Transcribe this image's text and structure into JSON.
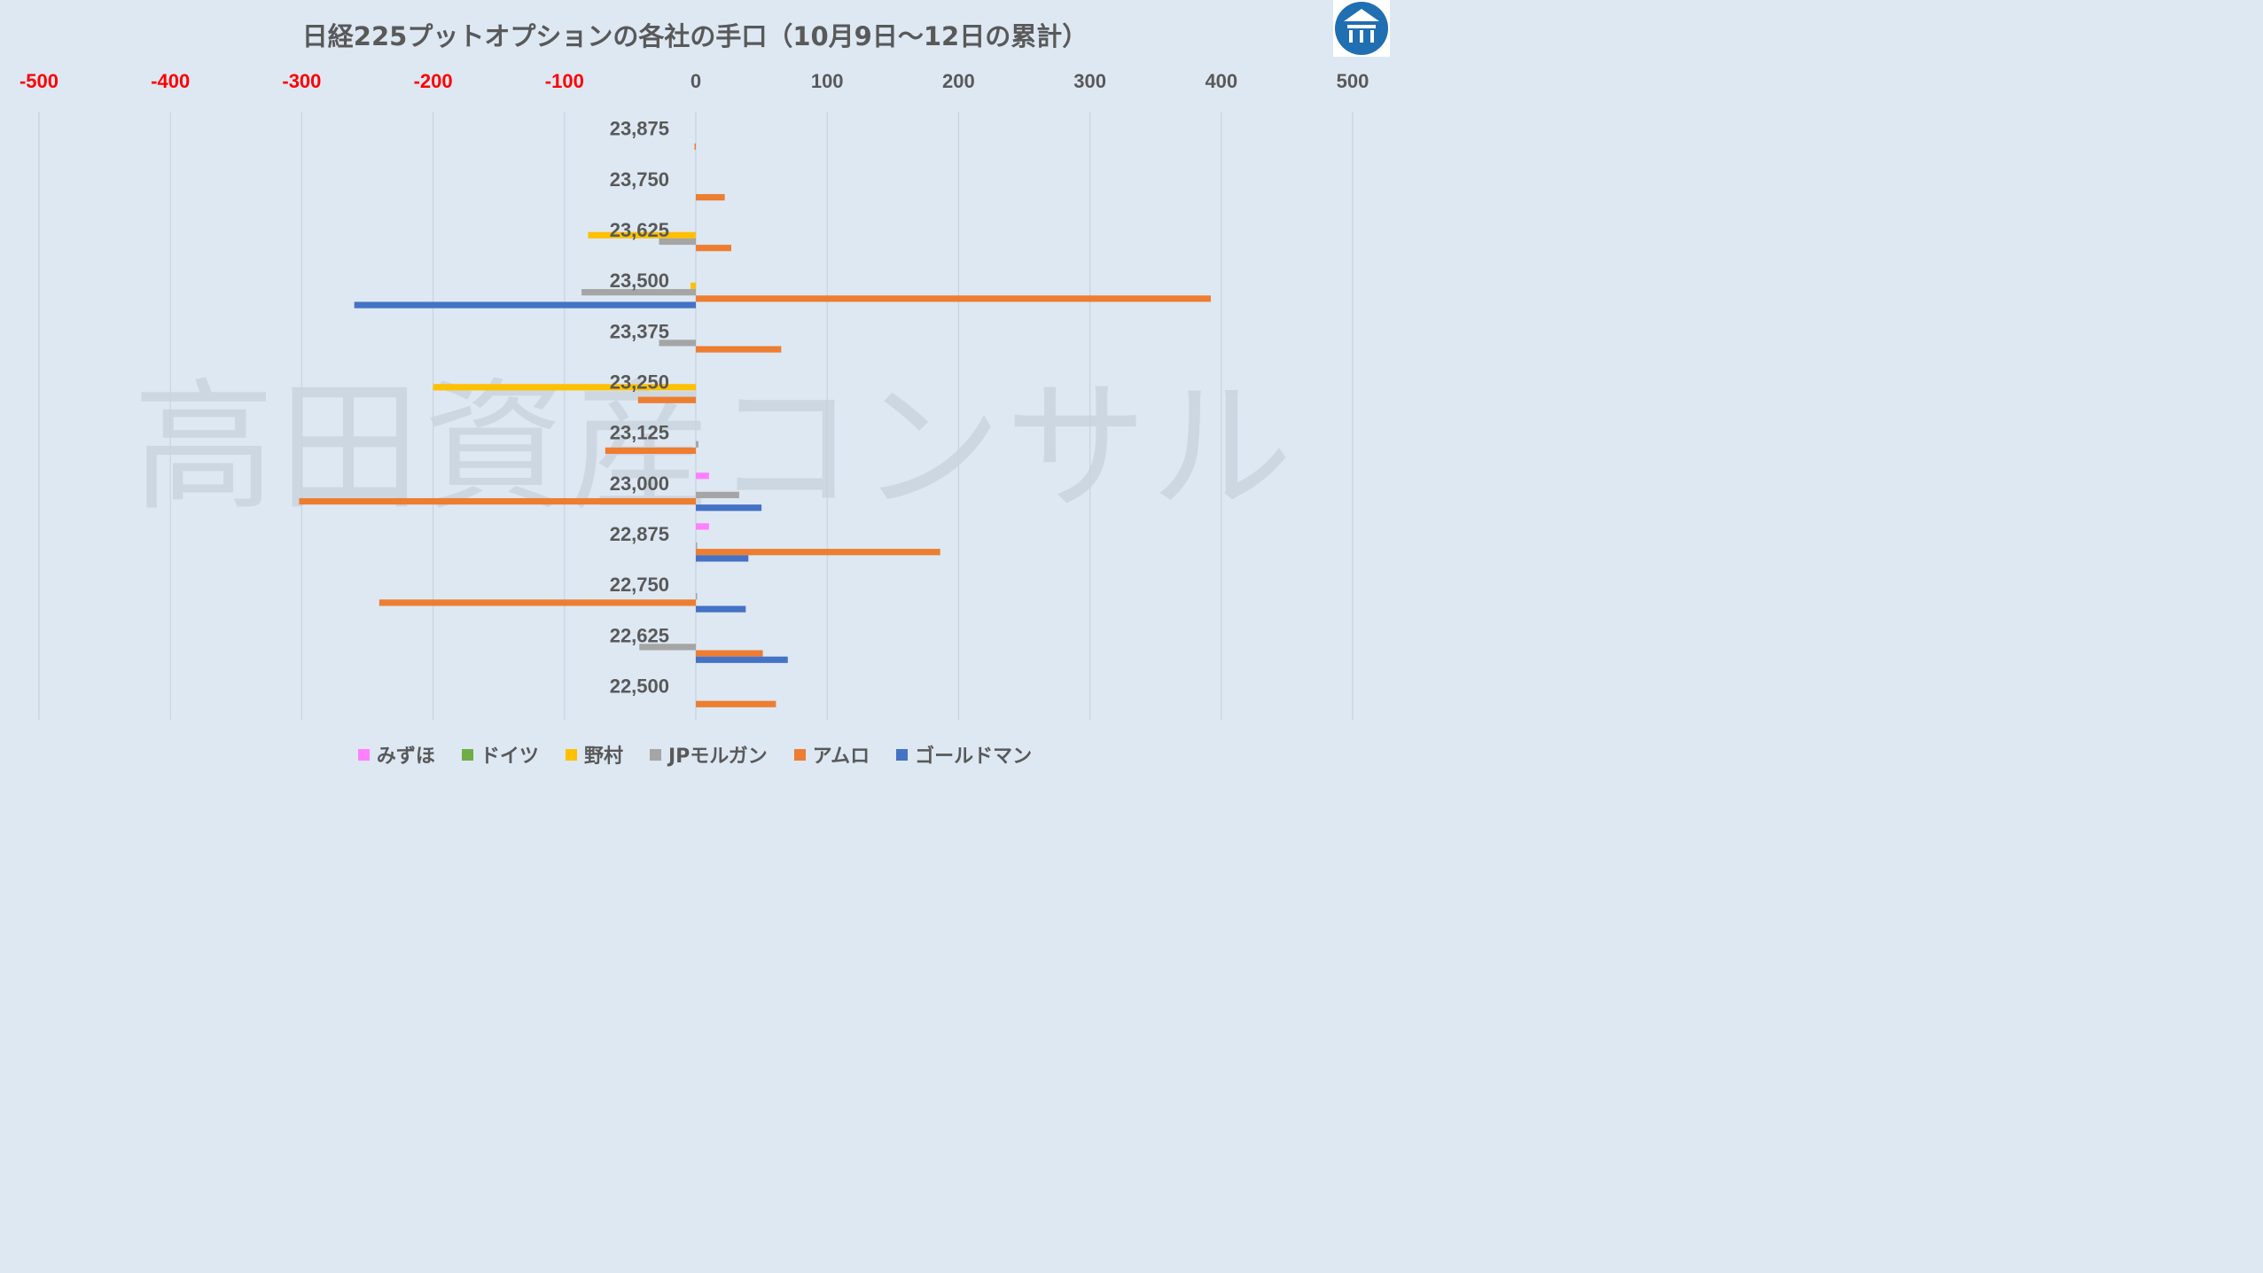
{
  "chart_data": {
    "type": "bar",
    "orientation": "horizontal",
    "title": "日経225プットオプションの各社の手口（10月9日～12日の累計）",
    "watermark": "高田資産コンサル",
    "xlim": [
      -500,
      500
    ],
    "xticks": [
      -500,
      -400,
      -300,
      -200,
      -100,
      0,
      100,
      200,
      300,
      400,
      500
    ],
    "xtick_labels": [
      "-500",
      "-400",
      "-300",
      "-200",
      "-100",
      "0",
      "100",
      "200",
      "300",
      "400",
      "500"
    ],
    "negative_tick_color": "#ff0000",
    "positive_tick_color": "#595959",
    "grid": "vertical",
    "legend_position": "bottom",
    "categories": [
      "23,875",
      "23,750",
      "23,625",
      "23,500",
      "23,375",
      "23,250",
      "23,125",
      "23,000",
      "22,875",
      "22,750",
      "22,625",
      "22,500"
    ],
    "series": [
      {
        "name": "みずほ",
        "color": "#ff80ff",
        "values": [
          0,
          0,
          0,
          0,
          0,
          0,
          0,
          10,
          10,
          0,
          0,
          0
        ]
      },
      {
        "name": "ドイツ",
        "color": "#70ad47",
        "values": [
          0,
          0,
          0,
          0,
          0,
          0,
          0,
          0,
          0,
          0,
          0,
          0
        ]
      },
      {
        "name": "野村",
        "color": "#ffc000",
        "values": [
          0,
          0,
          -82,
          -4,
          0,
          -200,
          0,
          0,
          0,
          0,
          0,
          0
        ]
      },
      {
        "name": "JPモルガン",
        "color": "#a5a5a5",
        "values": [
          0,
          0,
          -28,
          -87,
          -28,
          0,
          2,
          33,
          1,
          1,
          -43,
          0
        ]
      },
      {
        "name": "アムロ",
        "color": "#ed7d31",
        "values": [
          -1,
          22,
          27,
          392,
          65,
          -44,
          -69,
          -302,
          186,
          -241,
          51,
          61
        ]
      },
      {
        "name": "ゴールドマン",
        "color": "#4472c4",
        "values": [
          0,
          0,
          0,
          -260,
          0,
          0,
          0,
          50,
          40,
          38,
          70,
          0
        ]
      }
    ]
  }
}
